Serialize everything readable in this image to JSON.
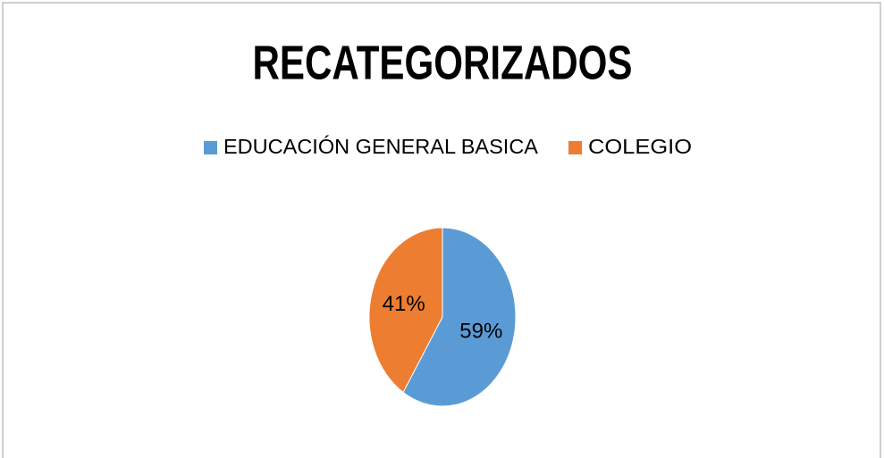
{
  "chart_data": {
    "type": "pie",
    "title": "RECATEGORIZADOS",
    "categories": [
      "EDUCACIÓN GENERAL BASICA",
      "COLEGIO"
    ],
    "values": [
      59,
      41
    ],
    "value_labels": [
      "59%",
      "41%"
    ],
    "colors": [
      "#5b9bd5",
      "#ed7d31"
    ],
    "legend": "top"
  }
}
